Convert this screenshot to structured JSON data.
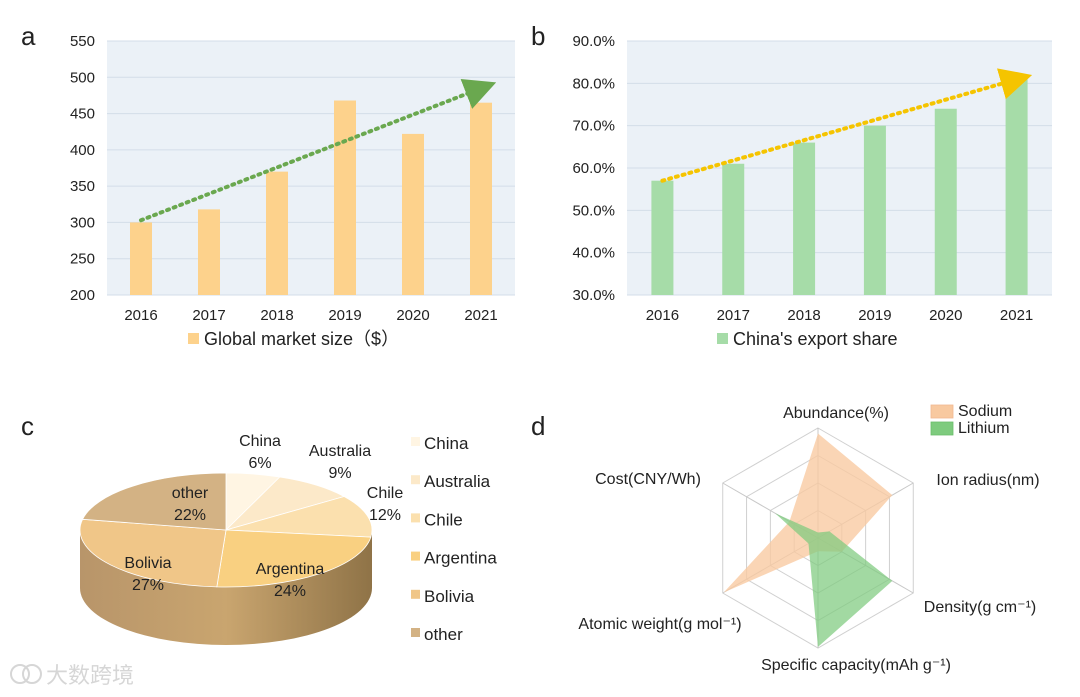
{
  "panels": [
    {
      "id": "a",
      "label": "a"
    },
    {
      "id": "b",
      "label": "b"
    },
    {
      "id": "c",
      "label": "c"
    },
    {
      "id": "d",
      "label": "d"
    }
  ],
  "watermark": "大数跨境",
  "colors": {
    "bar_a": "#fdd28c",
    "bar_b": "#a6dca8",
    "trend_a": "#6aa84f",
    "trend_b": "#f5c400",
    "sodium": "#f8c9a0",
    "lithium": "#7ecb7e",
    "plot_bg": "#ebf1f7"
  },
  "chart_data": [
    {
      "id": "a",
      "type": "bar",
      "categories": [
        "2016",
        "2017",
        "2018",
        "2019",
        "2020",
        "2021"
      ],
      "series": [
        {
          "name": "Global market size（$）",
          "values": [
            300,
            318,
            370,
            468,
            422,
            465
          ]
        }
      ],
      "ylim": [
        200,
        550
      ],
      "yticks": [
        "200",
        "250",
        "300",
        "350",
        "400",
        "450",
        "500",
        "550"
      ],
      "trend": {
        "from": 303,
        "to": 487
      },
      "grid": true,
      "legend": "bottom",
      "title": "",
      "xlabel": "",
      "ylabel": ""
    },
    {
      "id": "b",
      "type": "bar",
      "categories": [
        "2016",
        "2017",
        "2018",
        "2019",
        "2020",
        "2021"
      ],
      "series": [
        {
          "name": "China's export share",
          "values": [
            57,
            61,
            66,
            70,
            74,
            81
          ]
        }
      ],
      "ylim": [
        30,
        90
      ],
      "yticks": [
        "30.0%",
        "40.0%",
        "50.0%",
        "60.0%",
        "70.0%",
        "80.0%",
        "90.0%"
      ],
      "trend": {
        "from": 57,
        "to": 81.2
      },
      "grid": true,
      "legend": "bottom",
      "title": "",
      "xlabel": "",
      "ylabel": ""
    },
    {
      "id": "c",
      "type": "pie",
      "slices": [
        {
          "name": "China",
          "value": 6,
          "label": "6%",
          "color": "#fff5e3"
        },
        {
          "name": "Australia",
          "value": 9,
          "label": "9%",
          "color": "#fce9c9"
        },
        {
          "name": "Chile",
          "value": 12,
          "label": "12%",
          "color": "#fbe0ae"
        },
        {
          "name": "Argentina",
          "value": 24,
          "label": "24%",
          "color": "#f9d081"
        },
        {
          "name": "Bolivia",
          "value": 27,
          "label": "27%",
          "color": "#f0c688"
        },
        {
          "name": "other",
          "value": 22,
          "label": "22%",
          "color": "#d3b284"
        }
      ],
      "legend": "right",
      "title": ""
    },
    {
      "id": "d",
      "type": "radar",
      "axes": [
        "Abundance(%)",
        "Ion radius(nm)",
        "Density(g cm⁻¹)",
        "Specific capacity(mAh g⁻¹)",
        "Atomic weight(g mol⁻¹)",
        "Cost(CNY/Wh)"
      ],
      "range": [
        0,
        1
      ],
      "levels": 4,
      "series": [
        {
          "name": "Sodium",
          "values": [
            0.95,
            0.78,
            0.25,
            0.12,
            0.99,
            0.3
          ]
        },
        {
          "name": "Lithium",
          "values": [
            0.05,
            0.12,
            0.78,
            0.99,
            0.1,
            0.45
          ]
        }
      ],
      "legend": "top-right",
      "title": ""
    }
  ]
}
